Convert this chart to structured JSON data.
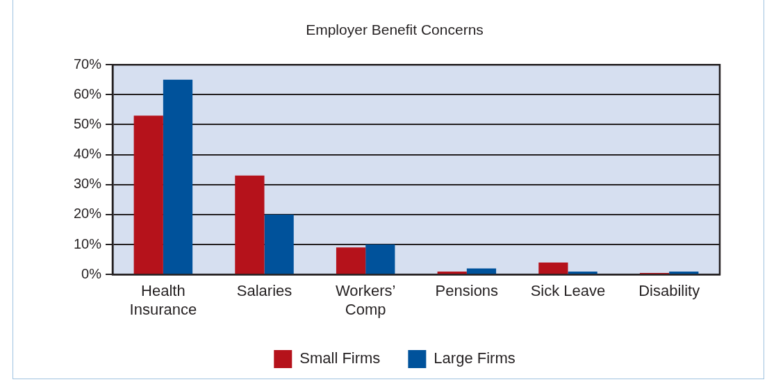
{
  "chart_data": {
    "type": "bar",
    "title": "Employer Benefit Concerns",
    "categories": [
      "Health Insurance",
      "Salaries",
      "Workers’ Comp",
      "Pensions",
      "Sick Leave",
      "Disability"
    ],
    "series": [
      {
        "name": "Small Firms",
        "color": "#b5121b",
        "values": [
          53,
          33,
          9,
          1,
          4,
          0.5
        ]
      },
      {
        "name": "Large Firms",
        "color": "#00529b",
        "values": [
          65,
          20,
          10,
          2,
          1,
          1
        ]
      }
    ],
    "ylim": [
      0,
      70
    ],
    "yticks": [
      {
        "value": 0,
        "label": "0%"
      },
      {
        "value": 10,
        "label": "10%"
      },
      {
        "value": 20,
        "label": "20%"
      },
      {
        "value": 30,
        "label": "30%"
      },
      {
        "value": 40,
        "label": "40%"
      },
      {
        "value": 50,
        "label": "50%"
      },
      {
        "value": 60,
        "label": "60%"
      },
      {
        "value": 70,
        "label": "70%"
      }
    ],
    "grid": "y",
    "legend": "bottom"
  }
}
